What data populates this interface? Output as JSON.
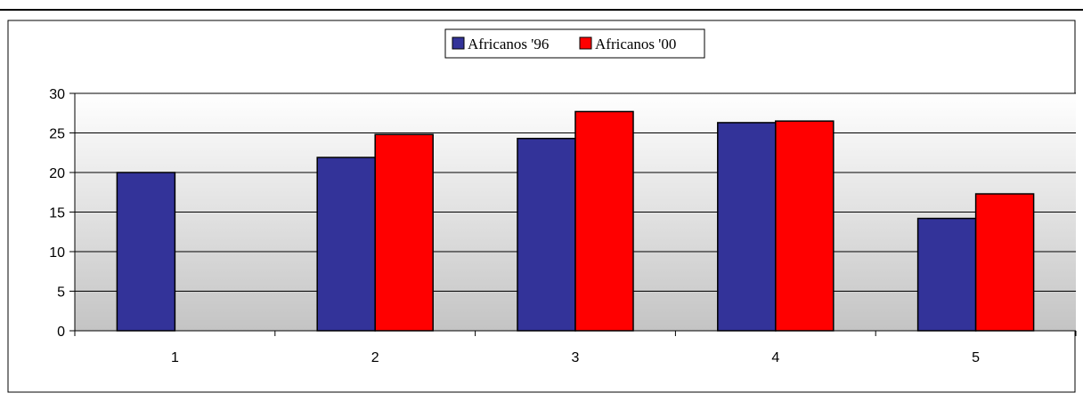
{
  "chart_data": {
    "type": "bar",
    "categories": [
      "1",
      "2",
      "3",
      "4",
      "5"
    ],
    "series": [
      {
        "name": "Africanos '96",
        "color": "#333399",
        "values": [
          20,
          21.9,
          24.3,
          26.3,
          14.2
        ]
      },
      {
        "name": "Africanos '00",
        "color": "#FF0000",
        "values": [
          null,
          24.8,
          27.7,
          26.5,
          17.3
        ]
      }
    ],
    "yticks": [
      "0",
      "5",
      "10",
      "15",
      "20",
      "25",
      "30"
    ],
    "ylim": [
      0,
      30
    ],
    "grid": true,
    "legend_position": "top-center",
    "plot_background": "gradient white to gray"
  }
}
